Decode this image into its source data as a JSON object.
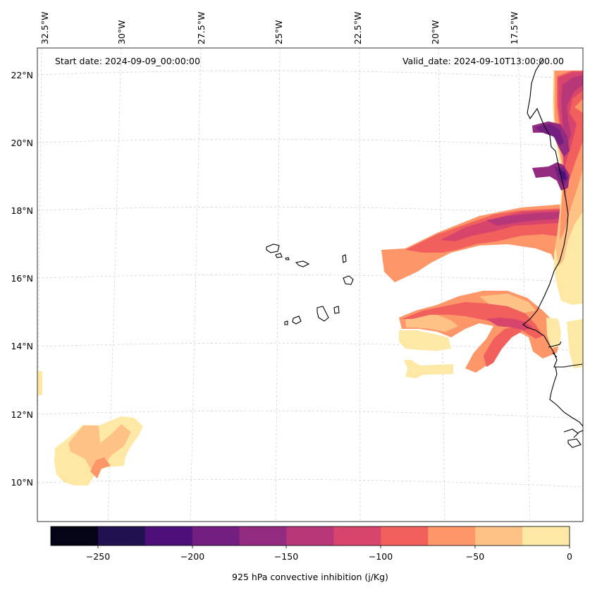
{
  "header": {
    "start_date": "Start date: 2024-09-09_00:00:00",
    "valid_date": "Valid_date: 2024-09-10T13:00:00.00"
  },
  "longitude_labels": [
    "32.5°W",
    "30°W",
    "27.5°W",
    "25°W",
    "22.5°W",
    "20°W",
    "17.5°W"
  ],
  "latitude_labels": [
    "22°N",
    "20°N",
    "18°N",
    "16°N",
    "14°N",
    "12°N",
    "10°N"
  ],
  "colorbar": {
    "label": "925 hPa convective inhibition (j/Kg)",
    "ticks": [
      "−250",
      "−200",
      "−150",
      "−100",
      "−50",
      "0"
    ],
    "levels": [
      -275,
      -250,
      -225,
      -200,
      -175,
      -150,
      -125,
      -100,
      -75,
      -50,
      -25,
      0
    ],
    "colors": [
      "#050416",
      "#221150",
      "#4c1078",
      "#721f81",
      "#932b80",
      "#b73779",
      "#d8456c",
      "#f1605d",
      "#fd9668",
      "#fec287",
      "#fde9a5"
    ]
  },
  "colors": {
    "coastline": "#000000",
    "gridline": "#cccccc",
    "frame": "#000000"
  }
}
